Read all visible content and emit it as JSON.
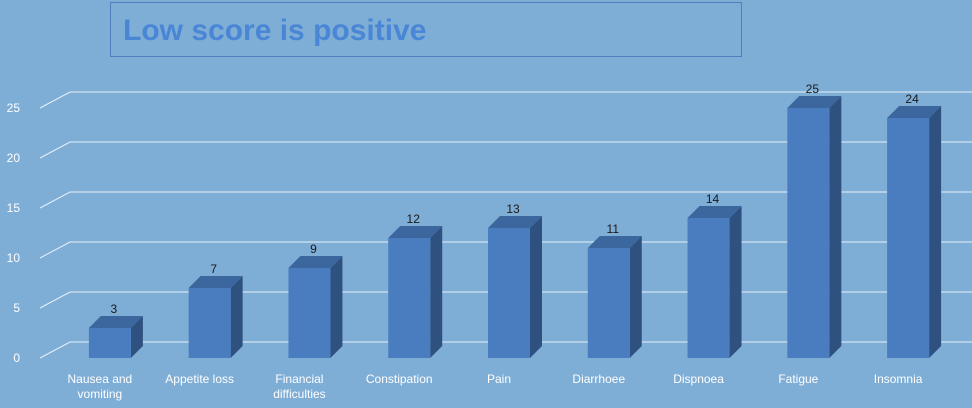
{
  "chart_data": {
    "type": "bar",
    "title": "Low score is positive",
    "categories": [
      "Nausea and vomiting",
      "Appetite loss",
      "Financial difficulties",
      "Constipation",
      "Pain",
      "Diarrhoee",
      "Dispnoea",
      "Fatigue",
      "Insomnia"
    ],
    "category_lines": [
      [
        "Nausea and",
        "vomiting"
      ],
      [
        "Appetite loss"
      ],
      [
        "Financial",
        "difficulties"
      ],
      [
        "Constipation"
      ],
      [
        "Pain"
      ],
      [
        "Diarrhoee"
      ],
      [
        "Dispnoea"
      ],
      [
        "Fatigue"
      ],
      [
        "Insomnia"
      ]
    ],
    "values": [
      3,
      7,
      9,
      12,
      13,
      11,
      14,
      25,
      24
    ],
    "xlabel": "",
    "ylabel": "",
    "ylim": [
      0,
      25
    ],
    "yticks": [
      0,
      5,
      10,
      15,
      20,
      25
    ],
    "grid": true,
    "style": "3d-column",
    "colors": {
      "background": "#7eadd6",
      "bar_front": "#4a7dbf",
      "bar_side": "#2f5180",
      "bar_top": "#3c669e",
      "gridline": "#e8f1fa",
      "text": "#ffffff",
      "value_label": "#1a1a1a",
      "title": "#4a86d6"
    }
  }
}
